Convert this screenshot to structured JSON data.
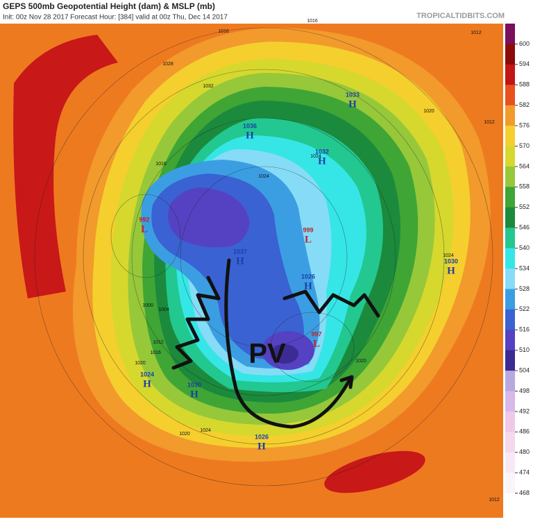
{
  "header": {
    "title": "GEPS 500mb Geopotential Height (dam) & MSLP (mb)",
    "subtitle": "Init: 00z Nov 28 2017   Forecast Hour: [384]   valid at 00z Thu, Dec 14 2017",
    "brand": "TROPICALTIDBITS.COM"
  },
  "colorbar": {
    "levels": [
      600,
      594,
      588,
      582,
      576,
      570,
      564,
      558,
      552,
      546,
      540,
      534,
      528,
      522,
      516,
      510,
      504,
      498,
      492,
      486,
      480,
      474,
      468
    ],
    "colors": [
      "#7a0f5c",
      "#8e0a0a",
      "#c41414",
      "#e8501c",
      "#f29a2c",
      "#f5cf2e",
      "#d6d82e",
      "#96c83a",
      "#3fa535",
      "#1b8a3c",
      "#22c890",
      "#36e6e6",
      "#86dcf6",
      "#3c9ee2",
      "#3a62d2",
      "#5442c2",
      "#3b2b92",
      "#b8a8e0",
      "#d8b8e8",
      "#f0c8e8",
      "#f4d8ee",
      "#f8e8f4",
      "#fbf4fa",
      "#ffffff"
    ]
  },
  "pressure_centers": [
    {
      "type": "H",
      "value": "1033"
    },
    {
      "type": "H",
      "value": "1036"
    },
    {
      "type": "H",
      "value": "1032"
    },
    {
      "type": "L",
      "value": "992"
    },
    {
      "type": "H",
      "value": "1037"
    },
    {
      "type": "L",
      "value": "999"
    },
    {
      "type": "H",
      "value": "1026"
    },
    {
      "type": "H",
      "value": "1030"
    },
    {
      "type": "L",
      "value": "997"
    },
    {
      "type": "H",
      "value": "1024"
    },
    {
      "type": "H",
      "value": "1030"
    },
    {
      "type": "H",
      "value": "1026"
    }
  ],
  "isobar_labels": [
    "1016",
    "1012",
    "1028",
    "1032",
    "1020",
    "1016",
    "1024",
    "1004",
    "1000",
    "1012",
    "1016",
    "1020",
    "1024",
    "1020",
    "1016",
    "1012",
    "1024",
    "1020",
    "1024",
    "1012"
  ],
  "annotation": "PV"
}
